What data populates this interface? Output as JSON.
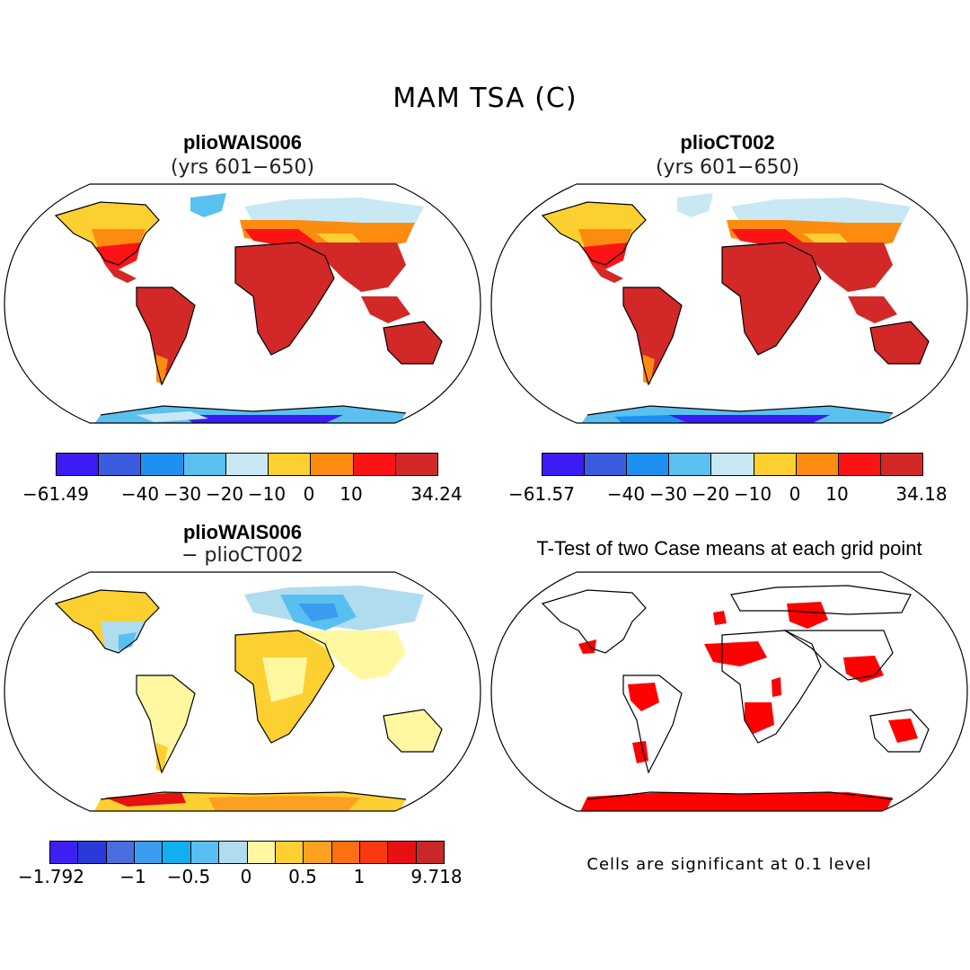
{
  "title": "MAM TSA (C)",
  "panels": {
    "top_left": {
      "title": "plioWAIS006",
      "subtitle": "(yrs 601−650)"
    },
    "top_right": {
      "title": "plioCT002",
      "subtitle": "(yrs 601−650)"
    },
    "bottom_left": {
      "title": "plioWAIS006",
      "subtitle": "− plioCT002"
    },
    "bottom_right": {
      "title": "T-Test of two Case means at each grid point",
      "note": "Cells are significant at 0.1 level"
    }
  },
  "colorbars": {
    "top_left": {
      "colors": [
        "#3c1cf2",
        "#3c5ce0",
        "#1e90f0",
        "#5ac0f0",
        "#c8e8f4",
        "#fcd030",
        "#fc8c10",
        "#fc1414",
        "#d22828"
      ],
      "labels": [
        "−61.49",
        "−40",
        "−30",
        "−20",
        "−10",
        "0",
        "10",
        "34.24"
      ]
    },
    "top_right": {
      "colors": [
        "#3c1cf2",
        "#3c5ce0",
        "#1e90f0",
        "#5ac0f0",
        "#c8e8f4",
        "#fcd030",
        "#fc8c10",
        "#fc1414",
        "#d22828"
      ],
      "labels": [
        "−61.57",
        "−40",
        "−30",
        "−20",
        "−10",
        "0",
        "10",
        "34.18"
      ]
    },
    "bottom_left": {
      "colors": [
        "#4020f0",
        "#2a3ad8",
        "#4a6ee0",
        "#3a9cf0",
        "#10b0f0",
        "#58c0f0",
        "#b0dcf0",
        "#fff8a0",
        "#fcd030",
        "#fca020",
        "#fc7010",
        "#fc3810",
        "#e81010",
        "#c82828"
      ],
      "labels": [
        "−1.792",
        "−1",
        "−0.5",
        "0",
        "0.5",
        "1",
        "9.718"
      ]
    }
  }
}
